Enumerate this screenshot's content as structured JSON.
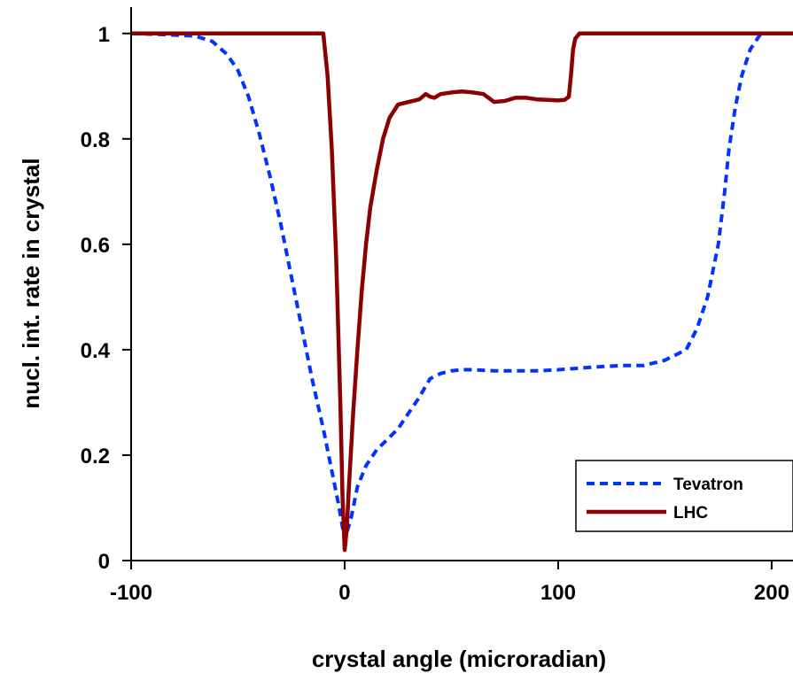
{
  "chart_data": {
    "type": "line",
    "title": "",
    "xlabel": "crystal angle (microradian)",
    "ylabel": "nucl. int. rate in crystal",
    "xlim": [
      -100,
      210
    ],
    "ylim": [
      0,
      1.05
    ],
    "xticks": [
      -100,
      0,
      100,
      200
    ],
    "xtick_labels": [
      "-100",
      "0",
      "100",
      "200"
    ],
    "yticks": [
      0,
      0.2,
      0.4,
      0.6,
      0.8,
      1
    ],
    "ytick_labels": [
      "0",
      "0.2",
      "0.4",
      "0.6",
      "0.8",
      "1"
    ],
    "grid": false,
    "legend": {
      "position": "bottom-right",
      "entries": [
        "Tevatron",
        "LHC"
      ]
    },
    "series": [
      {
        "name": "Tevatron",
        "color": "#0033ff",
        "dash": "dashed",
        "x": [
          -100,
          -85,
          -70,
          -62,
          -55,
          -50,
          -45,
          -40,
          -35,
          -30,
          -25,
          -20,
          -15,
          -10,
          -6,
          -3,
          0,
          3,
          6,
          10,
          15,
          20,
          25,
          30,
          35,
          40,
          45,
          50,
          55,
          60,
          70,
          80,
          90,
          100,
          110,
          120,
          130,
          140,
          150,
          160,
          165,
          170,
          175,
          178,
          180,
          183,
          186,
          190,
          195,
          200,
          210
        ],
        "y": [
          1.0,
          0.998,
          0.995,
          0.985,
          0.96,
          0.93,
          0.88,
          0.81,
          0.73,
          0.64,
          0.54,
          0.44,
          0.34,
          0.25,
          0.17,
          0.11,
          0.04,
          0.08,
          0.14,
          0.18,
          0.21,
          0.23,
          0.25,
          0.28,
          0.31,
          0.345,
          0.355,
          0.36,
          0.362,
          0.362,
          0.36,
          0.36,
          0.36,
          0.362,
          0.365,
          0.368,
          0.37,
          0.37,
          0.38,
          0.4,
          0.44,
          0.5,
          0.6,
          0.7,
          0.78,
          0.86,
          0.92,
          0.97,
          1.0,
          1.0,
          1.0
        ]
      },
      {
        "name": "LHC",
        "color": "#8b0000",
        "dash": "solid",
        "x": [
          -100,
          -50,
          -10,
          -8,
          -6,
          -4,
          -2,
          -1,
          0,
          1,
          2,
          4,
          6,
          8,
          10,
          12,
          15,
          18,
          21,
          25,
          30,
          35,
          38,
          40,
          42,
          45,
          50,
          55,
          60,
          65,
          70,
          75,
          80,
          85,
          90,
          95,
          100,
          103,
          105,
          106,
          107,
          108,
          110,
          120,
          150,
          180,
          210
        ],
        "y": [
          1.0,
          1.0,
          1.0,
          0.92,
          0.78,
          0.58,
          0.3,
          0.12,
          0.02,
          0.06,
          0.14,
          0.28,
          0.4,
          0.51,
          0.6,
          0.67,
          0.74,
          0.8,
          0.84,
          0.865,
          0.87,
          0.875,
          0.885,
          0.88,
          0.878,
          0.885,
          0.888,
          0.89,
          0.888,
          0.885,
          0.87,
          0.872,
          0.878,
          0.878,
          0.875,
          0.874,
          0.873,
          0.874,
          0.88,
          0.92,
          0.97,
          0.99,
          1.0,
          1.0,
          1.0,
          1.0,
          1.0
        ]
      }
    ]
  }
}
